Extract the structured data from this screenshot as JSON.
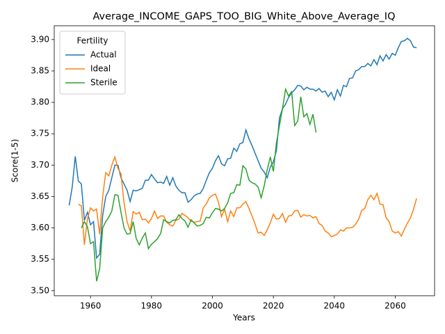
{
  "chart_data": {
    "type": "line",
    "title": "Average_INCOME_GAPS_TOO_BIG_White_Above_Average_IQ",
    "xlabel": "Years",
    "ylabel": "Score(1-5)",
    "legend_title": "Fertility",
    "legend": "upper left",
    "xlim": [
      1948.1,
      2072.9
    ],
    "ylim": [
      3.492,
      3.922
    ],
    "xticks": [
      1960,
      1980,
      2000,
      2020,
      2040,
      2060
    ],
    "yticks": [
      {
        "value": 3.5,
        "label": "3.50"
      },
      3.55,
      {
        "value": 3.6,
        "label": "3.60"
      },
      3.65,
      {
        "value": 3.7,
        "label": "3.70"
      },
      3.75,
      {
        "value": 3.8,
        "label": "3.80"
      },
      3.85,
      {
        "value": 3.9,
        "label": "3.90"
      }
    ],
    "x": [
      1953,
      1954,
      1955,
      1956,
      1957,
      1958,
      1959,
      1960,
      1961,
      1962,
      1963,
      1964,
      1965,
      1966,
      1967,
      1968,
      1969,
      1970,
      1971,
      1972,
      1973,
      1974,
      1975,
      1976,
      1977,
      1978,
      1979,
      1980,
      1981,
      1982,
      1983,
      1984,
      1985,
      1986,
      1987,
      1988,
      1989,
      1990,
      1991,
      1992,
      1993,
      1994,
      1995,
      1996,
      1997,
      1998,
      1999,
      2000,
      2001,
      2002,
      2003,
      2004,
      2005,
      2006,
      2007,
      2008,
      2009,
      2010,
      2011,
      2012,
      2013,
      2014,
      2015,
      2016,
      2017,
      2018,
      2019,
      2020,
      2021,
      2022,
      2023,
      2024,
      2025,
      2026,
      2027,
      2028,
      2029,
      2030,
      2031,
      2032,
      2033,
      2034,
      2035,
      2036,
      2037,
      2038,
      2039,
      2040,
      2041,
      2042,
      2043,
      2044,
      2045,
      2046,
      2047,
      2048,
      2049,
      2050,
      2051,
      2052,
      2053,
      2054,
      2055,
      2056,
      2057,
      2058,
      2059,
      2060,
      2061,
      2062,
      2063,
      2064,
      2065,
      2066,
      2067
    ],
    "series": [
      {
        "name": "Actual",
        "color": "#1f77b4",
        "values": [
          3.636,
          3.665,
          3.714,
          3.675,
          3.67,
          3.612,
          3.625,
          3.605,
          3.61,
          3.552,
          3.558,
          3.62,
          3.65,
          3.66,
          3.68,
          3.7,
          3.7,
          3.68,
          3.67,
          3.66,
          3.642,
          3.66,
          3.659,
          3.661,
          3.663,
          3.676,
          3.676,
          3.685,
          3.678,
          3.672,
          3.673,
          3.671,
          3.682,
          3.668,
          3.68,
          3.667,
          3.66,
          3.656,
          3.656,
          3.641,
          3.645,
          3.651,
          3.654,
          3.655,
          3.663,
          3.676,
          3.688,
          3.695,
          3.707,
          3.715,
          3.702,
          3.699,
          3.71,
          3.711,
          3.727,
          3.722,
          3.734,
          3.736,
          3.756,
          3.742,
          3.731,
          3.719,
          3.707,
          3.695,
          3.689,
          3.68,
          3.697,
          3.705,
          3.723,
          3.775,
          3.79,
          3.797,
          3.808,
          3.815,
          3.82,
          3.827,
          3.826,
          3.82,
          3.824,
          3.821,
          3.821,
          3.818,
          3.822,
          3.816,
          3.818,
          3.809,
          3.816,
          3.804,
          3.82,
          3.81,
          3.827,
          3.825,
          3.838,
          3.839,
          3.85,
          3.852,
          3.857,
          3.857,
          3.862,
          3.858,
          3.868,
          3.86,
          3.874,
          3.866,
          3.876,
          3.869,
          3.878,
          3.875,
          3.887,
          3.897,
          3.898,
          3.902,
          3.898,
          3.888,
          3.887
        ]
      },
      {
        "name": "Ideal",
        "color": "#ff7f0e",
        "values": [
          null,
          null,
          null,
          3.638,
          3.635,
          3.573,
          3.615,
          3.632,
          3.627,
          3.63,
          3.59,
          3.65,
          3.688,
          3.683,
          3.7,
          3.713,
          3.695,
          3.686,
          3.64,
          3.61,
          3.595,
          3.626,
          3.622,
          3.625,
          3.613,
          3.614,
          3.608,
          3.615,
          3.627,
          3.615,
          3.619,
          3.619,
          3.609,
          3.605,
          3.603,
          3.612,
          3.614,
          3.623,
          3.62,
          3.616,
          3.611,
          3.609,
          3.61,
          3.611,
          3.632,
          3.638,
          3.648,
          3.652,
          3.654,
          3.641,
          3.618,
          3.63,
          3.61,
          3.627,
          3.618,
          3.632,
          3.632,
          3.638,
          3.642,
          3.631,
          3.619,
          3.606,
          3.592,
          3.593,
          3.588,
          3.597,
          3.608,
          3.622,
          3.614,
          3.615,
          3.623,
          3.609,
          3.619,
          3.62,
          3.627,
          3.628,
          3.617,
          3.621,
          3.619,
          3.62,
          3.616,
          3.618,
          3.607,
          3.604,
          3.595,
          3.592,
          3.586,
          3.588,
          3.59,
          3.597,
          3.595,
          3.6,
          3.6,
          3.601,
          3.606,
          3.614,
          3.628,
          3.631,
          3.645,
          3.652,
          3.645,
          3.655,
          3.638,
          3.637,
          3.616,
          3.61,
          3.595,
          3.592,
          3.594,
          3.587,
          3.598,
          3.608,
          3.616,
          3.63,
          3.647
        ]
      },
      {
        "name": "Sterile",
        "color": "#2ca02c",
        "values": [
          null,
          null,
          null,
          null,
          3.6,
          3.61,
          3.602,
          3.575,
          3.578,
          3.515,
          3.535,
          3.6,
          3.61,
          3.617,
          3.627,
          3.653,
          3.652,
          3.625,
          3.6,
          3.59,
          3.591,
          3.61,
          3.583,
          3.573,
          3.584,
          3.592,
          3.567,
          3.574,
          3.578,
          3.583,
          3.591,
          3.613,
          3.61,
          3.608,
          3.612,
          3.613,
          3.621,
          3.615,
          3.611,
          3.601,
          3.613,
          3.608,
          3.603,
          3.604,
          3.607,
          3.617,
          3.616,
          3.624,
          3.631,
          3.63,
          3.627,
          3.631,
          3.64,
          3.655,
          3.656,
          3.669,
          3.668,
          3.699,
          3.694,
          3.676,
          3.672,
          3.67,
          3.665,
          3.648,
          3.667,
          3.693,
          3.713,
          3.69,
          3.735,
          3.763,
          3.79,
          3.821,
          3.81,
          3.817,
          3.763,
          3.77,
          3.809,
          3.777,
          3.782,
          3.765,
          3.781,
          3.752,
          null,
          null,
          null,
          null,
          null,
          null,
          null,
          null,
          null,
          null,
          null,
          null,
          null,
          null,
          null,
          null,
          null,
          null,
          null,
          null,
          null,
          null,
          null,
          null,
          null,
          null,
          null,
          null,
          null,
          null,
          null,
          null,
          null
        ]
      }
    ]
  }
}
